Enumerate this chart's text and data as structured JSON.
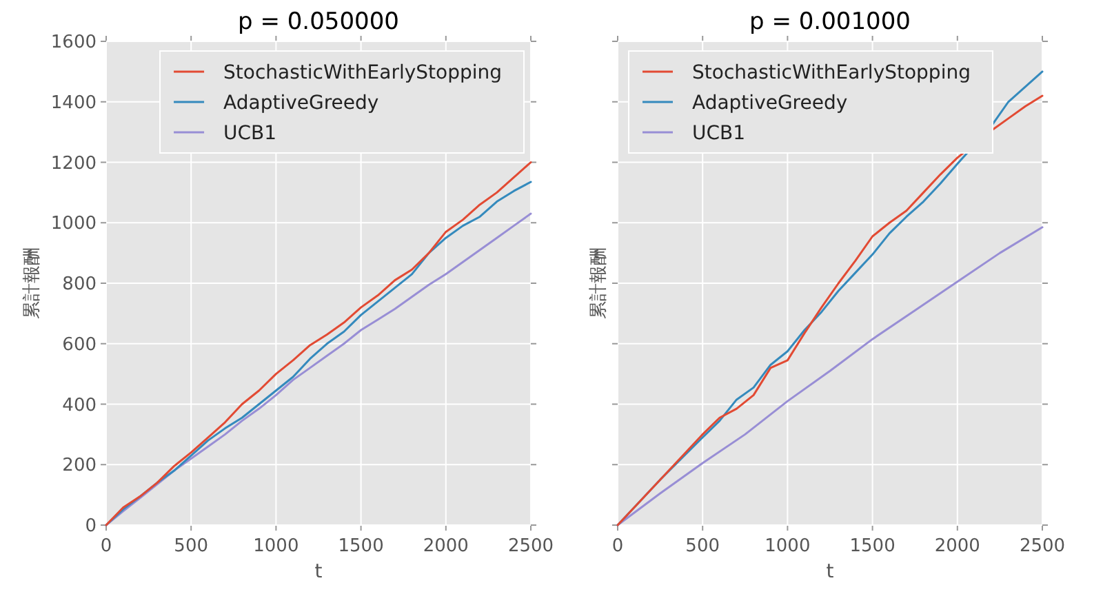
{
  "chart_data": [
    {
      "type": "line",
      "title": "p = 0.050000",
      "xlabel": "t",
      "ylabel": "累計報酬",
      "x": [
        0,
        100,
        200,
        300,
        400,
        500,
        600,
        700,
        800,
        900,
        1000,
        1100,
        1200,
        1300,
        1400,
        1500,
        1600,
        1700,
        1800,
        1900,
        2000,
        2100,
        2200,
        2300,
        2400,
        2500
      ],
      "xlim": [
        0,
        2500
      ],
      "ylim": [
        0,
        1600
      ],
      "xticks": [
        0,
        500,
        1000,
        1500,
        2000,
        2500
      ],
      "yticks": [
        0,
        200,
        400,
        600,
        800,
        1000,
        1200,
        1400,
        1600
      ],
      "grid": true,
      "legend": "top right",
      "series": [
        {
          "name": "StochasticWithEarlyStopping",
          "color": "#e24a33",
          "values": [
            0,
            58,
            95,
            140,
            195,
            240,
            290,
            340,
            400,
            445,
            500,
            545,
            595,
            630,
            670,
            720,
            760,
            810,
            845,
            900,
            970,
            1010,
            1060,
            1100,
            1150,
            1200
          ]
        },
        {
          "name": "AdaptiveGreedy",
          "color": "#348abd",
          "values": [
            0,
            52,
            95,
            140,
            180,
            230,
            280,
            320,
            355,
            400,
            445,
            490,
            550,
            600,
            640,
            695,
            740,
            785,
            830,
            900,
            950,
            990,
            1020,
            1070,
            1105,
            1135
          ]
        },
        {
          "name": "UCB1",
          "color": "#988ed5",
          "values": [
            0,
            46,
            90,
            135,
            180,
            220,
            260,
            300,
            345,
            385,
            430,
            480,
            520,
            560,
            600,
            645,
            680,
            715,
            755,
            795,
            830,
            870,
            910,
            950,
            990,
            1030
          ]
        }
      ]
    },
    {
      "type": "line",
      "title": "p = 0.001000",
      "xlabel": "t",
      "ylabel": "累計報酬",
      "x": [
        0,
        250,
        500,
        600,
        700,
        800,
        900,
        1000,
        1100,
        1200,
        1300,
        1400,
        1500,
        1600,
        1700,
        1800,
        1900,
        2000,
        2200,
        2300,
        2400,
        2500
      ],
      "xlim": [
        0,
        2500
      ],
      "ylim": [
        0,
        1600
      ],
      "xticks": [
        0,
        500,
        1000,
        1500,
        2000,
        2500
      ],
      "yticks": [
        0,
        200,
        400,
        600,
        800,
        1000,
        1200,
        1400,
        1600
      ],
      "grid": true,
      "legend": "top left",
      "tick_labels": "x",
      "series": [
        {
          "name": "StochasticWithEarlyStopping",
          "color": "#e24a33",
          "values": [
            0,
            150,
            300,
            355,
            385,
            430,
            520,
            545,
            635,
            720,
            800,
            875,
            955,
            1000,
            1040,
            1100,
            1160,
            1215,
            1305,
            1345,
            1385,
            1420
          ]
        },
        {
          "name": "AdaptiveGreedy",
          "color": "#348abd",
          "values": [
            0,
            150,
            290,
            345,
            415,
            455,
            530,
            575,
            645,
            705,
            775,
            835,
            895,
            965,
            1020,
            1070,
            1130,
            1195,
            1320,
            1400,
            1450,
            1500
          ]
        },
        {
          "name": "UCB1",
          "color": "#988ed5",
          "x": [
            0,
            250,
            500,
            750,
            1000,
            1250,
            1500,
            1750,
            2000,
            2250,
            2500
          ],
          "values": [
            0,
            105,
            205,
            300,
            410,
            510,
            615,
            710,
            805,
            900,
            985
          ]
        }
      ]
    }
  ]
}
